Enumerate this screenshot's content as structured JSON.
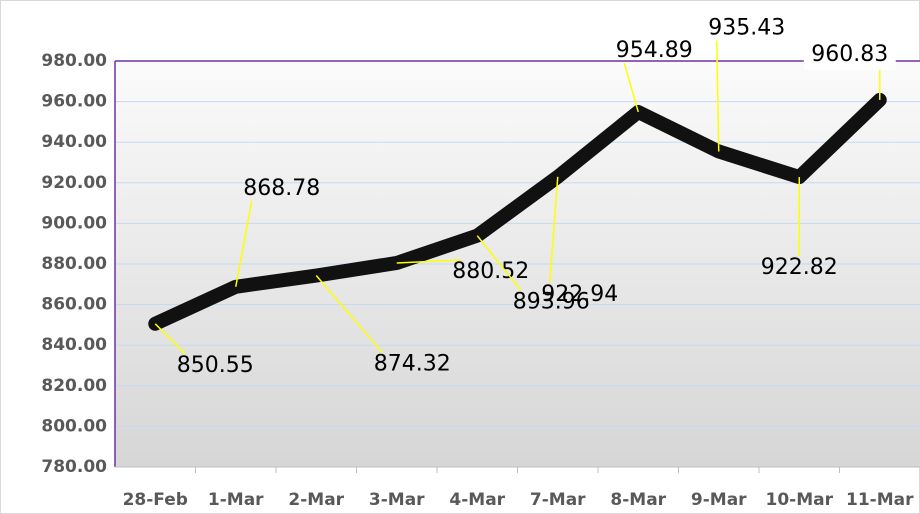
{
  "chart_data": {
    "type": "line",
    "categories": [
      "28-Feb",
      "1-Mar",
      "2-Mar",
      "3-Mar",
      "4-Mar",
      "7-Mar",
      "8-Mar",
      "9-Mar",
      "10-Mar",
      "11-Mar"
    ],
    "series": [
      {
        "color": "#111111",
        "values": [
          850.55,
          868.78,
          874.32,
          880.52,
          893.96,
          922.94,
          954.89,
          935.43,
          922.82,
          960.83
        ]
      }
    ],
    "ylim": [
      780,
      980
    ],
    "yticks": [
      {
        "value": 780,
        "label": "780.00"
      },
      {
        "value": 800,
        "label": "800.00"
      },
      {
        "value": 820,
        "label": "820.00"
      },
      {
        "value": 840,
        "label": "840.00"
      },
      {
        "value": 860,
        "label": "860.00"
      },
      {
        "value": 880,
        "label": "880.00"
      },
      {
        "value": 900,
        "label": "900.00"
      },
      {
        "value": 920,
        "label": "920.00"
      },
      {
        "value": 940,
        "label": "940.00"
      },
      {
        "value": 960,
        "label": "960.00"
      },
      {
        "value": 980,
        "label": "980.00"
      }
    ],
    "grid": true
  }
}
